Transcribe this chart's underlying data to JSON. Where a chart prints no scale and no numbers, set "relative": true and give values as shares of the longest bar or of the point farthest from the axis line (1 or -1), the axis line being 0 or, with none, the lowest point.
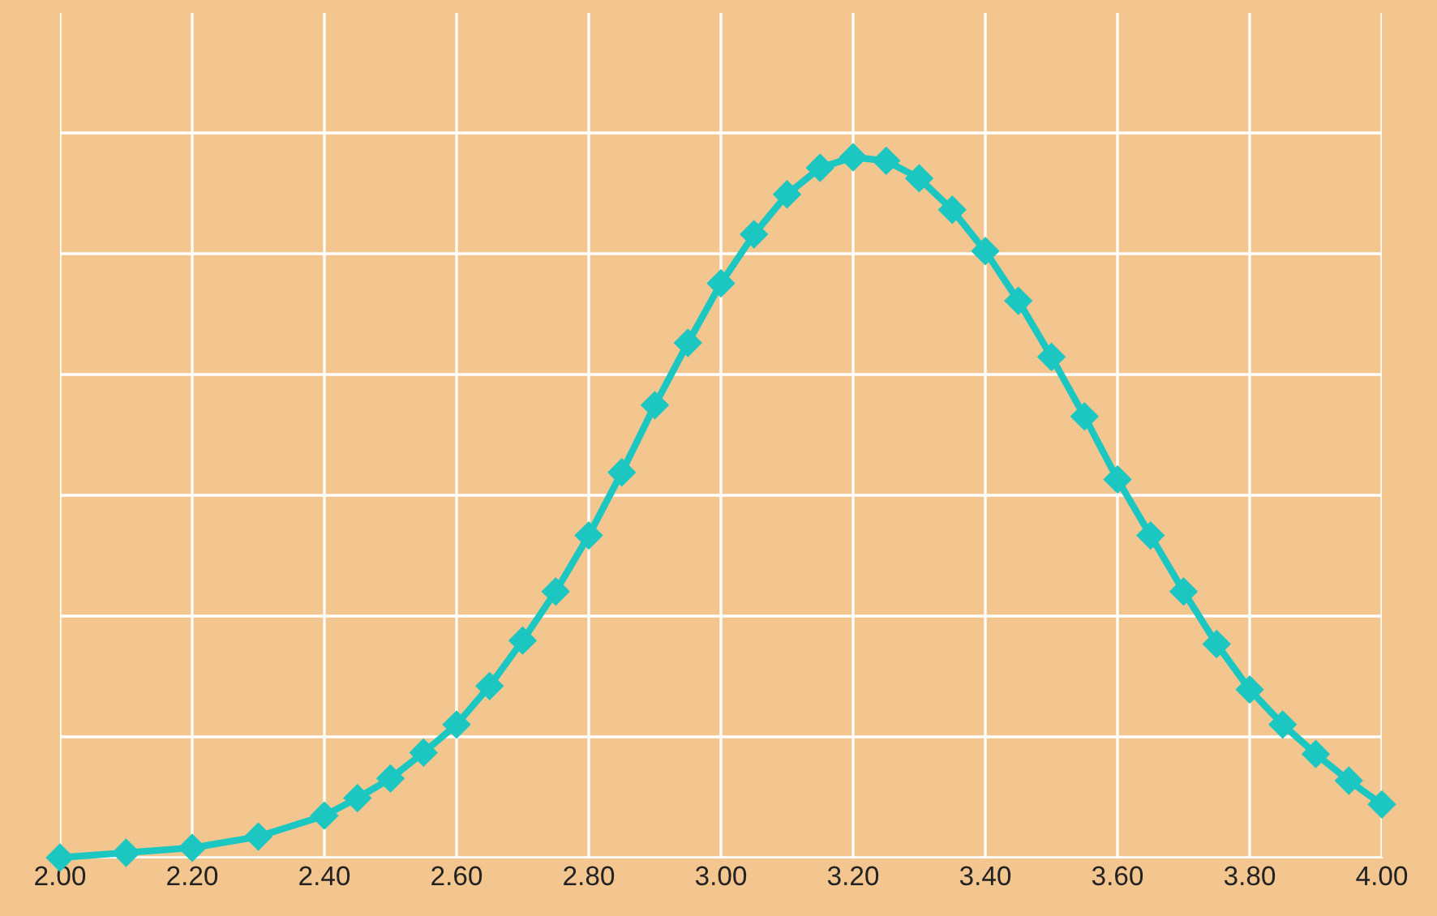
{
  "chart_data": {
    "type": "line",
    "relative": true,
    "x": [
      2.0,
      2.1,
      2.2,
      2.3,
      2.4,
      2.45,
      2.5,
      2.55,
      2.6,
      2.65,
      2.7,
      2.75,
      2.8,
      2.85,
      2.9,
      2.95,
      3.0,
      3.05,
      3.1,
      3.15,
      3.2,
      3.25,
      3.3,
      3.35,
      3.4,
      3.45,
      3.5,
      3.55,
      3.6,
      3.65,
      3.7,
      3.75,
      3.8,
      3.85,
      3.9,
      3.95,
      4.0
    ],
    "series": [
      {
        "color": "#1cc7c1",
        "values": [
          0.0,
          0.007,
          0.014,
          0.03,
          0.06,
          0.085,
          0.113,
          0.15,
          0.19,
          0.245,
          0.31,
          0.38,
          0.46,
          0.55,
          0.646,
          0.735,
          0.82,
          0.89,
          0.947,
          0.985,
          1.0,
          0.995,
          0.97,
          0.925,
          0.866,
          0.795,
          0.715,
          0.63,
          0.54,
          0.46,
          0.38,
          0.305,
          0.24,
          0.19,
          0.148,
          0.11,
          0.076
        ]
      }
    ],
    "xlim": [
      2.0,
      4.0
    ],
    "xticks": [
      {
        "value": 2.0,
        "label": "2.00"
      },
      {
        "value": 2.2,
        "label": "2.20"
      },
      {
        "value": 2.4,
        "label": "2.40"
      },
      {
        "value": 2.6,
        "label": "2.60"
      },
      {
        "value": 2.8,
        "label": "2.80"
      },
      {
        "value": 3.0,
        "label": "3.00"
      },
      {
        "value": 3.2,
        "label": "3.20"
      },
      {
        "value": 3.4,
        "label": "3.40"
      },
      {
        "value": 3.6,
        "label": "3.60"
      },
      {
        "value": 3.8,
        "label": "3.80"
      },
      {
        "value": 4.0,
        "label": "4.00"
      }
    ],
    "tick_labels": "x",
    "grid": true,
    "marker": "diamond",
    "line_style": "solid"
  }
}
